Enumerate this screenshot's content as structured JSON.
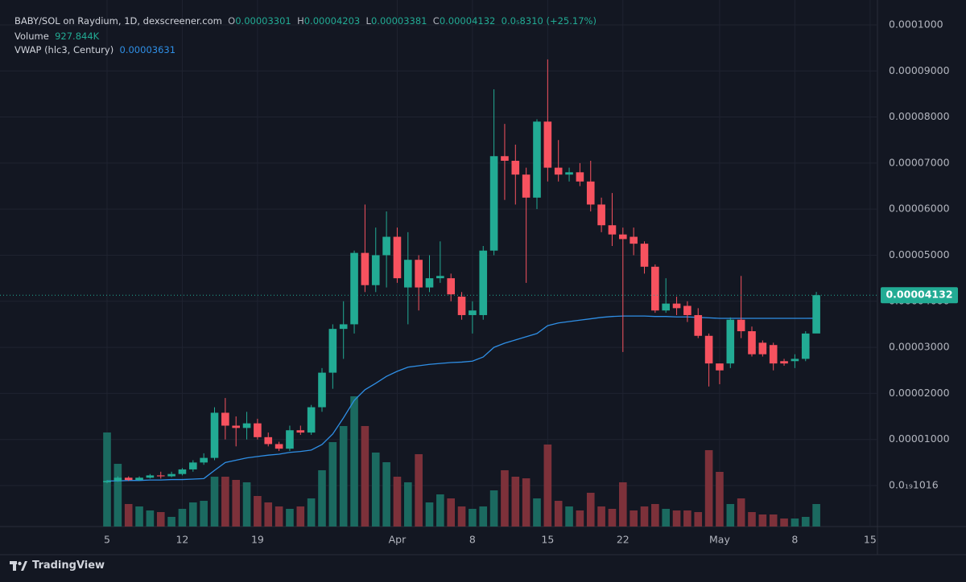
{
  "header": {
    "pair": "BABY/SOL on Raydium, 1D, dexscreener.com",
    "o_label": "O",
    "o": "0.00003301",
    "h_label": "H",
    "h": "0.00004203",
    "l_label": "L",
    "l": "0.00003381",
    "c_label": "C",
    "c": "0.00004132",
    "change": "0.0₅8310 (+25.17%)",
    "volume_label": "Volume",
    "volume": "927.844K",
    "vwap_label": "VWAP (hlc3, Century)",
    "vwap": "0.00003631"
  },
  "footer": {
    "brand": "TradingView"
  },
  "chart_data": {
    "type": "candlestick",
    "categories": [
      "5",
      null,
      null,
      null,
      null,
      null,
      null,
      "12",
      null,
      null,
      null,
      null,
      null,
      null,
      "19",
      null,
      null,
      null,
      null,
      null,
      null,
      null,
      null,
      null,
      null,
      null,
      null,
      "Apr",
      null,
      null,
      null,
      null,
      null,
      null,
      "8",
      null,
      null,
      null,
      null,
      null,
      null,
      "15",
      null,
      null,
      null,
      null,
      null,
      null,
      "22",
      null,
      null,
      null,
      null,
      null,
      null,
      null,
      null,
      "May",
      null,
      null,
      null,
      null,
      null,
      null,
      "8",
      null,
      null,
      null,
      null,
      null,
      null,
      "15"
    ],
    "open": [
      7e-07,
      1e-06,
      1.7e-06,
      1.2e-06,
      1.7e-06,
      2.2e-06,
      2e-06,
      2.5e-06,
      3.5e-06,
      5e-06,
      6e-06,
      1.58e-05,
      1.3e-05,
      1.25e-05,
      1.35e-05,
      1.05e-05,
      9e-06,
      8e-06,
      1.2e-05,
      1.15e-05,
      1.7e-05,
      2.45e-05,
      3.4e-05,
      3.5e-05,
      5.05e-05,
      4.35e-05,
      5e-05,
      5.4e-05,
      4.3e-05,
      4.9e-05,
      4.3e-05,
      4.5e-05,
      4.5e-05,
      4.1e-05,
      3.7e-05,
      3.7e-05,
      5.1e-05,
      7.15e-05,
      7.05e-05,
      6.75e-05,
      6.25e-05,
      7.9e-05,
      6.9e-05,
      6.75e-05,
      6.8e-05,
      6.6e-05,
      6.1e-05,
      5.65e-05,
      5.45e-05,
      5.4e-05,
      5.25e-05,
      4.75e-05,
      3.8e-05,
      3.95e-05,
      3.9e-05,
      3.7e-05,
      3.25e-05,
      2.65e-05,
      2.65e-05,
      3.6e-05,
      3.35e-05,
      3.1e-05,
      3.05e-05,
      2.7e-05,
      2.7e-05,
      2.75e-05,
      3.301e-05,
      null,
      null,
      null,
      null,
      null
    ],
    "high": [
      1.2e-06,
      2e-06,
      2e-06,
      2e-06,
      2.5e-06,
      3e-06,
      3e-06,
      3.8e-06,
      5.5e-06,
      7e-06,
      1.7e-05,
      1.9e-05,
      1.5e-05,
      1.6e-05,
      1.45e-05,
      1.15e-05,
      9.5e-06,
      1.3e-05,
      1.3e-05,
      1.75e-05,
      2.55e-05,
      3.5e-05,
      4e-05,
      5.1e-05,
      6.1e-05,
      5.6e-05,
      5.95e-05,
      5.6e-05,
      5.5e-05,
      5e-05,
      5e-05,
      5.3e-05,
      4.6e-05,
      4.2e-05,
      4e-05,
      5.2e-05,
      8.6e-05,
      7.85e-05,
      7.4e-05,
      6.9e-05,
      7.95e-05,
      9.25e-05,
      7.5e-05,
      6.9e-05,
      7e-05,
      7.05e-05,
      6.25e-05,
      6.35e-05,
      5.6e-05,
      5.6e-05,
      5.3e-05,
      4.8e-05,
      4.5e-05,
      4.1e-05,
      4e-05,
      3.85e-05,
      3.3e-05,
      2.65e-05,
      3.65e-05,
      4.55e-05,
      3.45e-05,
      3.15e-05,
      3.1e-05,
      2.75e-05,
      2.85e-05,
      3.35e-05,
      4.203e-05,
      null,
      null,
      null,
      null,
      null
    ],
    "low": [
      5e-07,
      8e-07,
      1e-06,
      1e-06,
      1.5e-06,
      1.5e-06,
      1.8e-06,
      2.2e-06,
      3e-06,
      4.5e-06,
      5.5e-06,
      1e-05,
      8.5e-06,
      1e-05,
      1e-05,
      8.5e-06,
      7.5e-06,
      7.5e-06,
      1.1e-05,
      1.1e-05,
      1.6e-05,
      2.1e-05,
      2.75e-05,
      3.3e-05,
      4.2e-05,
      4.2e-05,
      4.3e-05,
      4.4e-05,
      3.5e-05,
      3.8e-05,
      4.2e-05,
      4.4e-05,
      4e-05,
      3.6e-05,
      3.3e-05,
      3.6e-05,
      5e-05,
      6.2e-05,
      6.1e-05,
      4.4e-05,
      6e-05,
      6.6e-05,
      6.6e-05,
      6.6e-05,
      6.5e-05,
      5.95e-05,
      5.5e-05,
      5.2e-05,
      2.9e-05,
      5e-05,
      4.6e-05,
      3.75e-05,
      3.75e-05,
      3.7e-05,
      3.55e-05,
      3.2e-05,
      2.15e-05,
      2.2e-05,
      2.55e-05,
      3.2e-05,
      2.8e-05,
      2.8e-05,
      2.5e-05,
      2.6e-05,
      2.55e-05,
      2.7e-05,
      3.381e-05,
      null,
      null,
      null,
      null,
      null
    ],
    "close": [
      1e-06,
      1.7e-06,
      1.2e-06,
      1.7e-06,
      2.2e-06,
      2e-06,
      2.5e-06,
      3.5e-06,
      5e-06,
      6e-06,
      1.58e-05,
      1.3e-05,
      1.25e-05,
      1.35e-05,
      1.05e-05,
      9e-06,
      8e-06,
      1.2e-05,
      1.15e-05,
      1.7e-05,
      2.45e-05,
      3.4e-05,
      3.5e-05,
      5.05e-05,
      4.35e-05,
      5e-05,
      5.4e-05,
      4.5e-05,
      4.9e-05,
      4.3e-05,
      4.5e-05,
      4.55e-05,
      4.15e-05,
      3.7e-05,
      3.8e-05,
      5.1e-05,
      7.15e-05,
      7.05e-05,
      6.75e-05,
      6.25e-05,
      7.9e-05,
      6.9e-05,
      6.75e-05,
      6.8e-05,
      6.6e-05,
      6.1e-05,
      5.65e-05,
      5.45e-05,
      5.35e-05,
      5.25e-05,
      4.75e-05,
      3.8e-05,
      3.95e-05,
      3.85e-05,
      3.7e-05,
      3.25e-05,
      2.65e-05,
      2.5e-05,
      3.6e-05,
      3.35e-05,
      2.85e-05,
      2.85e-05,
      2.65e-05,
      2.65e-05,
      2.75e-05,
      3.3e-05,
      4.132e-05,
      null,
      null,
      null,
      null,
      null
    ],
    "volume": [
      3877000,
      2585000,
      928000,
      828000,
      663000,
      596000,
      398000,
      729000,
      994000,
      1060000,
      2054000,
      2054000,
      1922000,
      1823000,
      1259000,
      994000,
      828000,
      729000,
      828000,
      1160000,
      2320000,
      3479000,
      4142000,
      5368000,
      4142000,
      3049000,
      2651000,
      2054000,
      1823000,
      2982000,
      994000,
      1325000,
      1160000,
      828000,
      729000,
      828000,
      1491000,
      2320000,
      2054000,
      1988000,
      1160000,
      3380000,
      1060000,
      828000,
      663000,
      1392000,
      828000,
      729000,
      1823000,
      663000,
      828000,
      928000,
      729000,
      663000,
      663000,
      596000,
      3148000,
      2253000,
      928000,
      1160000,
      596000,
      497000,
      497000,
      331000,
      331000,
      398000,
      927844,
      null,
      null,
      null,
      null,
      null
    ],
    "vwap": [
      1e-06,
      1e-06,
      1.1e-06,
      1.1e-06,
      1.2e-06,
      1.2e-06,
      1.3e-06,
      1.3e-06,
      1.4e-06,
      1.5e-06,
      3.3e-06,
      5e-06,
      5.5e-06,
      6e-06,
      6.3e-06,
      6.6e-06,
      6.8e-06,
      7.2e-06,
      7.4e-06,
      7.7e-06,
      8.9e-06,
      1.12e-05,
      1.47e-05,
      1.85e-05,
      2.08e-05,
      2.22e-05,
      2.37e-05,
      2.48e-05,
      2.57e-05,
      2.6e-05,
      2.63e-05,
      2.65e-05,
      2.67e-05,
      2.68e-05,
      2.7e-05,
      2.79e-05,
      3e-05,
      3.09e-05,
      3.16e-05,
      3.23e-05,
      3.3e-05,
      3.47e-05,
      3.53e-05,
      3.56e-05,
      3.59e-05,
      3.62e-05,
      3.65e-05,
      3.67e-05,
      3.68e-05,
      3.68e-05,
      3.68e-05,
      3.67e-05,
      3.67e-05,
      3.66e-05,
      3.66e-05,
      3.65e-05,
      3.64e-05,
      3.63e-05,
      3.63e-05,
      3.63e-05,
      3.63e-05,
      3.63e-05,
      3.63e-05,
      3.63e-05,
      3.63e-05,
      3.63e-05,
      3.631e-05,
      null,
      null,
      null,
      null,
      null
    ],
    "up_color": "#22ab94",
    "down_color": "#f7525f",
    "volume_up_color": "#1b6a60",
    "volume_down_color": "#7d313a",
    "vwap_color": "#2f8fe6",
    "current_price": {
      "value": 4.132e-05,
      "label": "0.00004132"
    },
    "ylim": [
      -8.9e-06,
      0.0001054
    ],
    "yticks": [
      {
        "value": 1.016e-19,
        "label": "0.0₁₉1016"
      },
      {
        "value": 1e-05,
        "label": "0.00001000"
      },
      {
        "value": 2e-05,
        "label": "0.00002000"
      },
      {
        "value": 3e-05,
        "label": "0.00003000"
      },
      {
        "value": 4e-05,
        "label": "0.00004000"
      },
      {
        "value": 5e-05,
        "label": "0.00005000"
      },
      {
        "value": 6e-05,
        "label": "0.00006000"
      },
      {
        "value": 7e-05,
        "label": "0.00007000"
      },
      {
        "value": 8e-05,
        "label": "0.00008000"
      },
      {
        "value": 9e-05,
        "label": "0.00009000"
      },
      {
        "value": 0.0001,
        "label": "0.0001000"
      }
    ],
    "y2lim": [
      0,
      21700000
    ],
    "grid": true
  }
}
